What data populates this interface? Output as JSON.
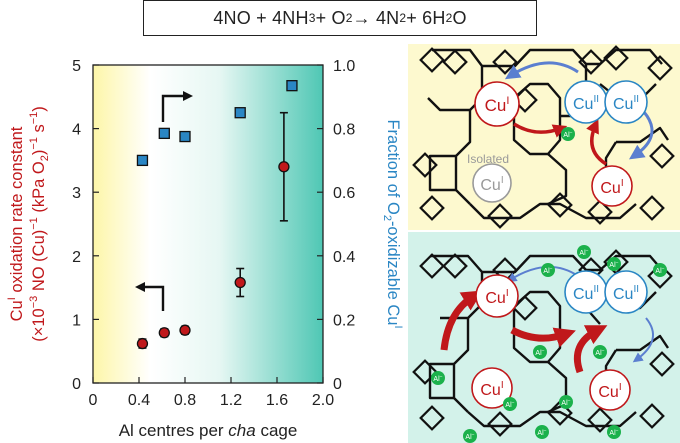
{
  "equation": {
    "p1": "4NO + 4NH",
    "s1": "3",
    "p2": " + O",
    "s2": "2",
    "p3": " → 4N",
    "s3": "2",
    "p4": " + 6H",
    "s4": "2",
    "p5": "O"
  },
  "colors": {
    "left_axis": "#c0181b",
    "right_axis": "#2a86c4",
    "cu1": "#c0181b",
    "cu2": "#2a86c4",
    "al": "#1bb14b",
    "panel_top_bg": "#fdf9cf",
    "panel_bottom_bg": "#d3f2ea",
    "gradient_start": "#fdf6a8",
    "gradient_end": "#4fc7b4"
  },
  "chart_data": {
    "type": "scatter",
    "xlabel_parts": [
      "Al centres per ",
      "cha",
      " cage"
    ],
    "x_ticks": [
      "0",
      "0.4",
      "0.8",
      "1.2",
      "1.6",
      "2.0"
    ],
    "x_tick_values": [
      0,
      0.4,
      0.8,
      1.2,
      1.6,
      2.0
    ],
    "xlim": [
      0,
      2.0
    ],
    "ylim_left": [
      0,
      5
    ],
    "y_ticks_left": [
      "0",
      "1",
      "2",
      "3",
      "4",
      "5"
    ],
    "y_tick_values_left": [
      0,
      1,
      2,
      3,
      4,
      5
    ],
    "ylim_right": [
      0,
      1.0
    ],
    "y_ticks_right": [
      "0",
      "0.2",
      "0.4",
      "0.6",
      "0.8",
      "1.0"
    ],
    "y_tick_values_right": [
      0,
      0.2,
      0.4,
      0.6,
      0.8,
      1.0
    ],
    "ylabel_left_line1": [
      "Cu",
      "I",
      " oxidation rate constant"
    ],
    "ylabel_left_line2": [
      "(×10",
      "−3",
      " NO (Cu)",
      "−1",
      " (kPa O",
      "2",
      ")",
      "−1",
      " s",
      "−1",
      ")"
    ],
    "ylabel_right": [
      "Fraction of O",
      "2",
      "-oxidizable Cu",
      "I"
    ],
    "series": [
      {
        "axis": "left",
        "marker": "circle",
        "x": [
          0.43,
          0.62,
          0.8,
          1.28,
          1.66
        ],
        "y": [
          0.62,
          0.79,
          0.83,
          1.58,
          3.4
        ],
        "err": [
          0.07,
          0.06,
          0.06,
          0.22,
          0.85
        ]
      },
      {
        "axis": "right",
        "marker": "square",
        "x": [
          0.43,
          0.62,
          0.8,
          1.28,
          1.73
        ],
        "y": [
          0.7,
          0.785,
          0.775,
          0.85,
          0.935
        ]
      }
    ]
  },
  "diagram": {
    "top_labels": {
      "cu_i_left": [
        "Cu",
        "I"
      ],
      "cu_ii_a": [
        "Cu",
        "II"
      ],
      "cu_ii_b": [
        "Cu",
        "II"
      ],
      "cu_i_bottom": [
        "Cu",
        "I"
      ],
      "isolated_label": "Isolated",
      "cu_i_isolated": [
        "Cu",
        "I"
      ],
      "al_label": [
        "Al",
        "−"
      ]
    },
    "bottom_labels": {
      "cu_i_left": [
        "Cu",
        "I"
      ],
      "cu_ii_a": [
        "Cu",
        "II"
      ],
      "cu_ii_b": [
        "Cu",
        "II"
      ],
      "cu_i_bl": [
        "Cu",
        "I"
      ],
      "cu_i_br": [
        "Cu",
        "I"
      ],
      "al_label": [
        "Al",
        "−"
      ]
    }
  }
}
